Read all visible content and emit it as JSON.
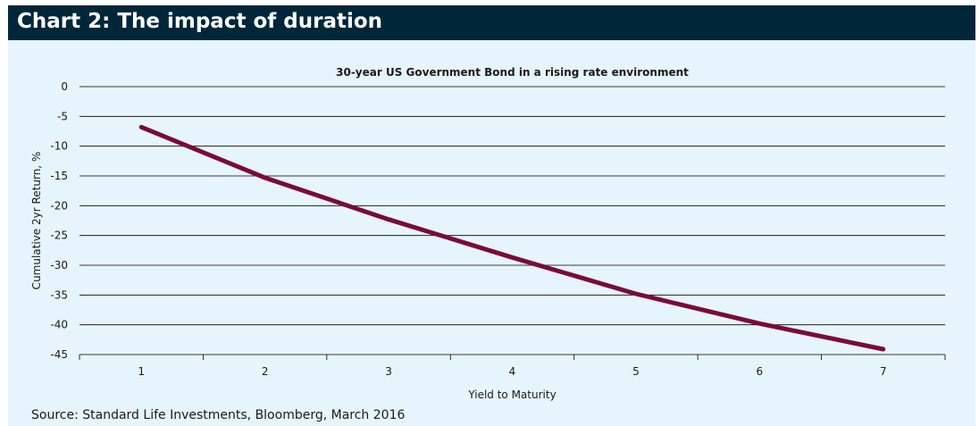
{
  "header": {
    "title": "Chart 2: The impact of duration"
  },
  "source": "Source: Standard Life Investments, Bloomberg, March 2016",
  "colors": {
    "header_bg": "#00263a",
    "panel_bg": "#e6f4fb",
    "series": "#7a0a3a",
    "grid": "#000000"
  },
  "chart_data": {
    "type": "line",
    "title": "30-year US Government Bond in a rising rate environment",
    "xlabel": "Yield to Maturity",
    "ylabel": "Cumulative 2yr Return, %",
    "categories": [
      "1",
      "2",
      "3",
      "4",
      "5",
      "6",
      "7"
    ],
    "yticks": [
      "0",
      "-5",
      "-10",
      "-15",
      "-20",
      "-25",
      "-30",
      "-35",
      "-40",
      "-45"
    ],
    "ylim": [
      -45,
      0
    ],
    "grid": true,
    "legend": "none",
    "series": [
      {
        "values": [
          -6.8,
          -15.3,
          -22.3,
          -28.7,
          -34.8,
          -39.8,
          -44.1
        ]
      }
    ]
  }
}
